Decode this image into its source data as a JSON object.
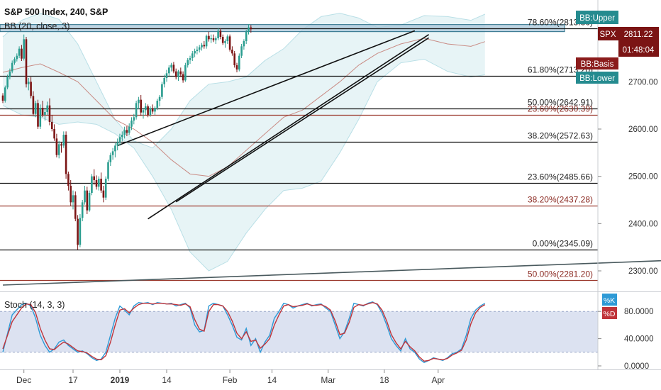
{
  "header": {
    "symbol_title": "S&P 500 Index, 240, S&P",
    "bb_indicator": "BB (20, close, 3)",
    "stoch_indicator": "Stoch (14, 3, 3)"
  },
  "colors": {
    "up_candle": "#2a9d8f",
    "down_candle": "#7b1414",
    "bb_band": "#b9dfe6",
    "bb_fill": "#e7f4f6",
    "bb_basis": "#c98b84",
    "fib_line": "#111111",
    "fib_red_line": "#9c3a2e",
    "trendline": "#111111",
    "stoch_k": "#2e9ad6",
    "stoch_d": "#c0343a",
    "stoch_band": "#d6ddee",
    "axis_text": "#333333",
    "tag_teal": "#258b8f",
    "tag_maroon": "#8b1c1c"
  },
  "price_tags": {
    "bb_upper": "BB:Upper",
    "spx_label": "SPX",
    "spx_price": "2811.22",
    "countdown": "01:48:04",
    "bb_basis": "BB:Basis",
    "bb_lower": "BB:Lower"
  },
  "stoch_tags": {
    "k": "%K",
    "d": "%D"
  },
  "chart_data": {
    "type": "candlestick",
    "title": "S&P 500 Index, 240, S&P",
    "price_axis": {
      "ylim": [
        2255,
        2855
      ],
      "ticks": [
        {
          "value": 2700,
          "label": "2700.00"
        },
        {
          "value": 2600,
          "label": "2600.00"
        },
        {
          "value": 2500,
          "label": "2500.00"
        },
        {
          "value": 2400,
          "label": "2400.00"
        },
        {
          "value": 2300,
          "label": "2300.00"
        }
      ]
    },
    "time_axis": {
      "ticks": [
        {
          "bar": 9,
          "label": "Dec",
          "bold": false
        },
        {
          "bar": 30,
          "label": "17",
          "bold": false
        },
        {
          "bar": 50,
          "label": "2019",
          "bold": true
        },
        {
          "bar": 70,
          "label": "14",
          "bold": false
        },
        {
          "bar": 97,
          "label": "Feb",
          "bold": false
        },
        {
          "bar": 115,
          "label": "14",
          "bold": false
        },
        {
          "bar": 139,
          "label": "Mar",
          "bold": false
        },
        {
          "bar": 163,
          "label": "18",
          "bold": false
        },
        {
          "bar": 186,
          "label": "Apr",
          "bold": false
        }
      ]
    },
    "candles": [
      [
        2671,
        2676,
        2655,
        2660
      ],
      [
        2660,
        2692,
        2656,
        2688
      ],
      [
        2688,
        2715,
        2684,
        2710
      ],
      [
        2710,
        2728,
        2705,
        2722
      ],
      [
        2722,
        2745,
        2718,
        2740
      ],
      [
        2740,
        2752,
        2736,
        2748
      ],
      [
        2748,
        2760,
        2743,
        2755
      ],
      [
        2755,
        2775,
        2750,
        2770
      ],
      [
        2770,
        2778,
        2744,
        2749
      ],
      [
        2749,
        2800,
        2745,
        2790
      ],
      [
        2790,
        2795,
        2688,
        2695
      ],
      [
        2695,
        2708,
        2682,
        2700
      ],
      [
        2700,
        2710,
        2665,
        2670
      ],
      [
        2670,
        2680,
        2628,
        2632
      ],
      [
        2632,
        2660,
        2625,
        2655
      ],
      [
        2655,
        2662,
        2600,
        2605
      ],
      [
        2605,
        2652,
        2600,
        2645
      ],
      [
        2645,
        2660,
        2625,
        2630
      ],
      [
        2630,
        2642,
        2618,
        2636
      ],
      [
        2636,
        2658,
        2630,
        2650
      ],
      [
        2650,
        2665,
        2608,
        2615
      ],
      [
        2615,
        2630,
        2595,
        2600
      ],
      [
        2600,
        2610,
        2575,
        2580
      ],
      [
        2580,
        2590,
        2540,
        2545
      ],
      [
        2545,
        2575,
        2538,
        2568
      ],
      [
        2568,
        2572,
        2550,
        2565
      ],
      [
        2565,
        2595,
        2560,
        2588
      ],
      [
        2588,
        2595,
        2495,
        2505
      ],
      [
        2505,
        2510,
        2470,
        2480
      ],
      [
        2480,
        2492,
        2438,
        2445
      ],
      [
        2445,
        2470,
        2430,
        2460
      ],
      [
        2460,
        2468,
        2405,
        2410
      ],
      [
        2410,
        2418,
        2345,
        2355
      ],
      [
        2355,
        2420,
        2350,
        2412
      ],
      [
        2412,
        2450,
        2405,
        2445
      ],
      [
        2445,
        2480,
        2440,
        2470
      ],
      [
        2470,
        2478,
        2420,
        2428
      ],
      [
        2428,
        2470,
        2425,
        2465
      ],
      [
        2465,
        2505,
        2460,
        2500
      ],
      [
        2500,
        2515,
        2482,
        2492
      ],
      [
        2492,
        2502,
        2472,
        2478
      ],
      [
        2478,
        2500,
        2470,
        2495
      ],
      [
        2495,
        2508,
        2465,
        2470
      ],
      [
        2470,
        2480,
        2445,
        2455
      ],
      [
        2455,
        2500,
        2450,
        2495
      ],
      [
        2495,
        2535,
        2490,
        2530
      ],
      [
        2530,
        2550,
        2522,
        2545
      ],
      [
        2545,
        2560,
        2535,
        2553
      ],
      [
        2553,
        2570,
        2540,
        2565
      ],
      [
        2565,
        2580,
        2555,
        2572
      ],
      [
        2572,
        2590,
        2565,
        2583
      ],
      [
        2583,
        2595,
        2574,
        2588
      ],
      [
        2588,
        2605,
        2580,
        2598
      ],
      [
        2598,
        2606,
        2585,
        2592
      ],
      [
        2592,
        2612,
        2588,
        2605
      ],
      [
        2605,
        2625,
        2598,
        2618
      ],
      [
        2618,
        2632,
        2610,
        2625
      ],
      [
        2625,
        2660,
        2620,
        2655
      ],
      [
        2655,
        2668,
        2642,
        2662
      ],
      [
        2662,
        2672,
        2628,
        2635
      ],
      [
        2635,
        2645,
        2622,
        2640
      ],
      [
        2640,
        2655,
        2630,
        2648
      ],
      [
        2648,
        2652,
        2625,
        2630
      ],
      [
        2630,
        2648,
        2626,
        2644
      ],
      [
        2644,
        2652,
        2632,
        2637
      ],
      [
        2637,
        2648,
        2630,
        2645
      ],
      [
        2645,
        2664,
        2640,
        2660
      ],
      [
        2660,
        2672,
        2648,
        2668
      ],
      [
        2668,
        2700,
        2663,
        2695
      ],
      [
        2695,
        2715,
        2688,
        2708
      ],
      [
        2708,
        2725,
        2700,
        2718
      ],
      [
        2718,
        2735,
        2712,
        2730
      ],
      [
        2730,
        2740,
        2722,
        2736
      ],
      [
        2736,
        2742,
        2718,
        2722
      ],
      [
        2722,
        2728,
        2705,
        2710
      ],
      [
        2710,
        2725,
        2702,
        2722
      ],
      [
        2722,
        2730,
        2710,
        2716
      ],
      [
        2716,
        2722,
        2698,
        2703
      ],
      [
        2703,
        2740,
        2700,
        2735
      ],
      [
        2735,
        2750,
        2730,
        2746
      ],
      [
        2746,
        2755,
        2738,
        2750
      ],
      [
        2750,
        2765,
        2744,
        2760
      ],
      [
        2760,
        2770,
        2752,
        2765
      ],
      [
        2765,
        2775,
        2758,
        2768
      ],
      [
        2768,
        2778,
        2762,
        2773
      ],
      [
        2773,
        2782,
        2766,
        2778
      ],
      [
        2778,
        2786,
        2770,
        2775
      ],
      [
        2775,
        2800,
        2770,
        2797
      ],
      [
        2797,
        2806,
        2785,
        2790
      ],
      [
        2790,
        2800,
        2782,
        2792
      ],
      [
        2792,
        2800,
        2784,
        2788
      ],
      [
        2788,
        2796,
        2780,
        2792
      ],
      [
        2792,
        2814,
        2788,
        2808
      ],
      [
        2808,
        2813,
        2790,
        2795
      ],
      [
        2795,
        2800,
        2778,
        2782
      ],
      [
        2782,
        2790,
        2772,
        2786
      ],
      [
        2786,
        2800,
        2780,
        2796
      ],
      [
        2796,
        2800,
        2764,
        2768
      ],
      [
        2768,
        2775,
        2755,
        2760
      ],
      [
        2760,
        2765,
        2730,
        2735
      ],
      [
        2735,
        2740,
        2720,
        2726
      ],
      [
        2726,
        2760,
        2722,
        2755
      ],
      [
        2755,
        2780,
        2750,
        2775
      ],
      [
        2775,
        2790,
        2768,
        2786
      ],
      [
        2786,
        2810,
        2780,
        2806
      ],
      [
        2806,
        2822,
        2800,
        2815
      ],
      [
        2815,
        2820,
        2804,
        2811.22
      ]
    ],
    "bar_positions_note": "",
    "bollinger": {
      "period": 20,
      "source": "close",
      "mult": 3,
      "upper_series_bars": [
        0,
        8,
        16,
        24,
        32,
        40,
        48,
        56,
        64,
        72,
        80,
        88,
        96,
        104,
        112,
        120,
        128,
        136,
        144,
        152,
        160,
        170,
        180,
        190,
        200,
        206
      ],
      "upper": [
        2795,
        2830,
        2845,
        2832,
        2780,
        2700,
        2620,
        2575,
        2560,
        2600,
        2660,
        2695,
        2700,
        2710,
        2745,
        2770,
        2810,
        2838,
        2845,
        2835,
        2815,
        2820,
        2840,
        2838,
        2830,
        2843
      ],
      "basis": [
        2720,
        2730,
        2738,
        2720,
        2700,
        2660,
        2620,
        2600,
        2572,
        2535,
        2505,
        2500,
        2520,
        2555,
        2590,
        2625,
        2640,
        2670,
        2700,
        2735,
        2760,
        2780,
        2792,
        2780,
        2775,
        2785
      ],
      "lower": [
        2650,
        2630,
        2625,
        2610,
        2615,
        2610,
        2590,
        2560,
        2500,
        2430,
        2340,
        2300,
        2320,
        2380,
        2430,
        2470,
        2475,
        2490,
        2550,
        2620,
        2700,
        2740,
        2748,
        2722,
        2710,
        2715
      ]
    },
    "fibonacci_levels": [
      {
        "label": "78.60%(2813.30)",
        "value": 2813.3,
        "color": "black"
      },
      {
        "label": "61.80%(2713.20)",
        "value": 2713.2,
        "color": "black"
      },
      {
        "label": "50.00%(2642.91)",
        "value": 2642.91,
        "color": "black"
      },
      {
        "label": "23.60%(2630.39)",
        "value": 2630.39,
        "color": "red"
      },
      {
        "label": "38.20%(2572.63)",
        "value": 2572.63,
        "color": "black"
      },
      {
        "label": "23.60%(2485.66)",
        "value": 2485.66,
        "color": "black"
      },
      {
        "label": "38.20%(2437.28)",
        "value": 2437.28,
        "color": "red"
      },
      {
        "label": "0.00%(2345.09)",
        "value": 2345.09,
        "color": "black"
      },
      {
        "label": "50.00%(2281.20)",
        "value": 2281.2,
        "color": "red"
      }
    ],
    "resistance_zone": {
      "top": 2821,
      "bottom": 2806
    },
    "trendlines": [
      {
        "from_bar": 49,
        "from_value": 2565,
        "to_bar": 176,
        "to_value": 2808
      },
      {
        "from_bar": 62,
        "from_value": 2410,
        "to_bar": 182,
        "to_value": 2800
      },
      {
        "from_bar": 74,
        "from_value": 2446,
        "to_bar": 182,
        "to_value": 2793
      },
      {
        "from_bar": 0,
        "from_value": 2270,
        "to_bar": 290,
        "to_value": 2323
      }
    ],
    "stochastic": {
      "settings": "Stoch (14, 3, 3)",
      "ylim": [
        0,
        100
      ],
      "band": [
        20,
        80
      ],
      "ticks": [
        {
          "value": 80,
          "label": "80.0000"
        },
        {
          "value": 40,
          "label": "40.0000"
        },
        {
          "value": 0,
          "label": "0.0000"
        }
      ],
      "k_bars": [
        0,
        4,
        8,
        10,
        12,
        14,
        16,
        18,
        20,
        22,
        24,
        26,
        28,
        30,
        32,
        34,
        36,
        38,
        40,
        42,
        44,
        46,
        48,
        50,
        52,
        54,
        56,
        58,
        60,
        62,
        64,
        66,
        68,
        70,
        72,
        74,
        76,
        78,
        80,
        82,
        84,
        86,
        88,
        90,
        92,
        94,
        96,
        98,
        100,
        102,
        104,
        106,
        108,
        110,
        112,
        114,
        116,
        118,
        120,
        122,
        124,
        126,
        128,
        130,
        132,
        134,
        136,
        138,
        140,
        142,
        144,
        146,
        148,
        150,
        152,
        154,
        156,
        158,
        160,
        162,
        164,
        166,
        168,
        170,
        172,
        174,
        176,
        178,
        180,
        182,
        184,
        186,
        188,
        190,
        192,
        194,
        196,
        198,
        200,
        202,
        204,
        206
      ],
      "k": [
        20,
        75,
        90,
        92,
        88,
        70,
        45,
        30,
        20,
        25,
        35,
        38,
        30,
        25,
        20,
        22,
        18,
        12,
        8,
        10,
        20,
        45,
        70,
        88,
        82,
        75,
        88,
        93,
        92,
        93,
        90,
        93,
        92,
        91,
        92,
        88,
        90,
        92,
        85,
        60,
        50,
        52,
        88,
        92,
        90,
        88,
        75,
        60,
        42,
        38,
        55,
        30,
        40,
        20,
        35,
        45,
        70,
        80,
        92,
        90,
        85,
        88,
        90,
        92,
        88,
        90,
        91,
        85,
        80,
        60,
        40,
        50,
        70,
        92,
        90,
        88,
        92,
        94,
        90,
        78,
        60,
        40,
        30,
        22,
        40,
        25,
        20,
        10,
        5,
        8,
        12,
        10,
        8,
        12,
        18,
        20,
        25,
        45,
        70,
        82,
        88,
        92
      ],
      "d": [
        25,
        65,
        85,
        91,
        90,
        78,
        55,
        38,
        25,
        24,
        30,
        35,
        32,
        27,
        22,
        21,
        19,
        14,
        10,
        9,
        15,
        35,
        60,
        82,
        84,
        78,
        85,
        90,
        92,
        92,
        91,
        92,
        92,
        91,
        91,
        90,
        89,
        91,
        87,
        68,
        54,
        51,
        80,
        90,
        90,
        88,
        80,
        66,
        48,
        40,
        50,
        36,
        38,
        26,
        32,
        40,
        60,
        75,
        88,
        90,
        87,
        88,
        89,
        91,
        89,
        89,
        90,
        87,
        82,
        66,
        46,
        48,
        64,
        86,
        90,
        89,
        91,
        93,
        91,
        82,
        66,
        46,
        34,
        25,
        36,
        28,
        22,
        13,
        7,
        8,
        11,
        10,
        9,
        11,
        16,
        19,
        23,
        38,
        62,
        78,
        86,
        90
      ]
    }
  }
}
